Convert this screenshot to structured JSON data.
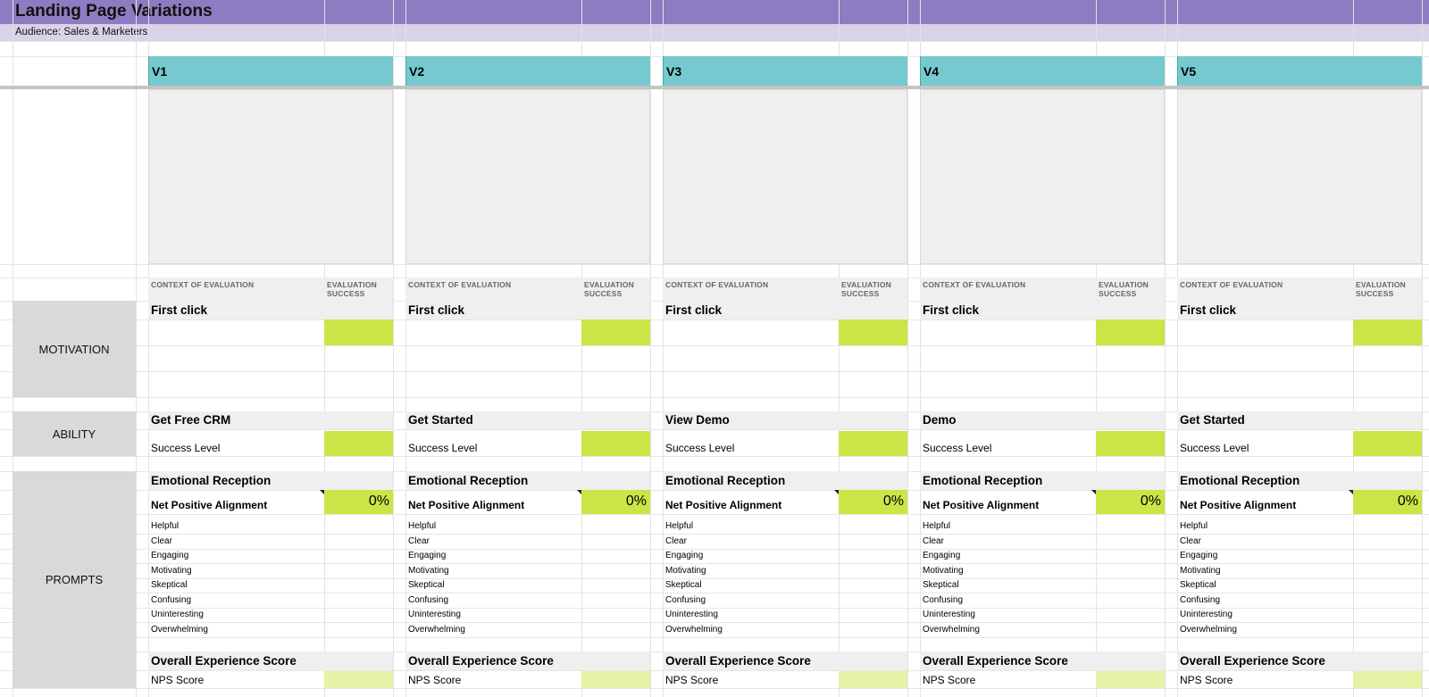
{
  "title": "Landing Page Variations",
  "subtitle": "Audience: Sales & Marketers",
  "side_labels": {
    "motivation": "MOTIVATION",
    "ability": "ABILITY",
    "prompts": "PROMPTS"
  },
  "colors": {
    "title_band": "#8e7cc3",
    "subtitle_band": "#d9d2e9",
    "version_header": "#76c9ce",
    "success_cell": "#cbe547",
    "nps_cell": "#e5f3a6",
    "side_label": "#d9d9d9"
  },
  "variations": [
    {
      "name": "V1",
      "context_header": "CONTEXT OF EVALUATION",
      "success_header": "EVALUATION SUCCESS",
      "motivation_title": "First click",
      "ability_title": "Get Free CRM",
      "success_level": "Success Level",
      "emotional_title": "Emotional Reception",
      "net_positive_label": "Net Positive Alignment",
      "net_positive_value": "0%",
      "emotions": [
        "Helpful",
        "Clear",
        "Engaging",
        "Motivating",
        "Skeptical",
        "Confusing",
        "Uninteresting",
        "Overwhelming"
      ],
      "overall_title": "Overall Experience Score",
      "nps_label": "NPS Score"
    },
    {
      "name": "V2",
      "context_header": "CONTEXT OF EVALUATION",
      "success_header": "EVALUATION SUCCESS",
      "motivation_title": "First click",
      "ability_title": "Get Started",
      "success_level": "Success Level",
      "emotional_title": "Emotional Reception",
      "net_positive_label": "Net Positive Alignment",
      "net_positive_value": "0%",
      "emotions": [
        "Helpful",
        "Clear",
        "Engaging",
        "Motivating",
        "Skeptical",
        "Confusing",
        "Uninteresting",
        "Overwhelming"
      ],
      "overall_title": "Overall Experience Score",
      "nps_label": "NPS Score"
    },
    {
      "name": "V3",
      "context_header": "CONTEXT OF EVALUATION",
      "success_header": "EVALUATION SUCCESS",
      "motivation_title": "First click",
      "ability_title": "View Demo",
      "success_level": "Success Level",
      "emotional_title": "Emotional Reception",
      "net_positive_label": "Net Positive Alignment",
      "net_positive_value": "0%",
      "emotions": [
        "Helpful",
        "Clear",
        "Engaging",
        "Motivating",
        "Skeptical",
        "Confusing",
        "Uninteresting",
        "Overwhelming"
      ],
      "overall_title": "Overall Experience Score",
      "nps_label": "NPS Score"
    },
    {
      "name": "V4",
      "context_header": "CONTEXT OF EVALUATION",
      "success_header": "EVALUATION SUCCESS",
      "motivation_title": "First click",
      "ability_title": "Demo",
      "success_level": "Success Level",
      "emotional_title": "Emotional Reception",
      "net_positive_label": "Net Positive Alignment",
      "net_positive_value": "0%",
      "emotions": [
        "Helpful",
        "Clear",
        "Engaging",
        "Motivating",
        "Skeptical",
        "Confusing",
        "Uninteresting",
        "Overwhelming"
      ],
      "overall_title": "Overall Experience Score",
      "nps_label": "NPS Score"
    },
    {
      "name": "V5",
      "context_header": "CONTEXT OF EVALUATION",
      "success_header": "EVALUATION SUCCESS",
      "motivation_title": "First click",
      "ability_title": "Get Started",
      "success_level": "Success Level",
      "emotional_title": "Emotional Reception",
      "net_positive_label": "Net Positive Alignment",
      "net_positive_value": "0%",
      "emotions": [
        "Helpful",
        "Clear",
        "Engaging",
        "Motivating",
        "Skeptical",
        "Confusing",
        "Uninteresting",
        "Overwhelming"
      ],
      "overall_title": "Overall Experience Score",
      "nps_label": "NPS Score"
    }
  ]
}
